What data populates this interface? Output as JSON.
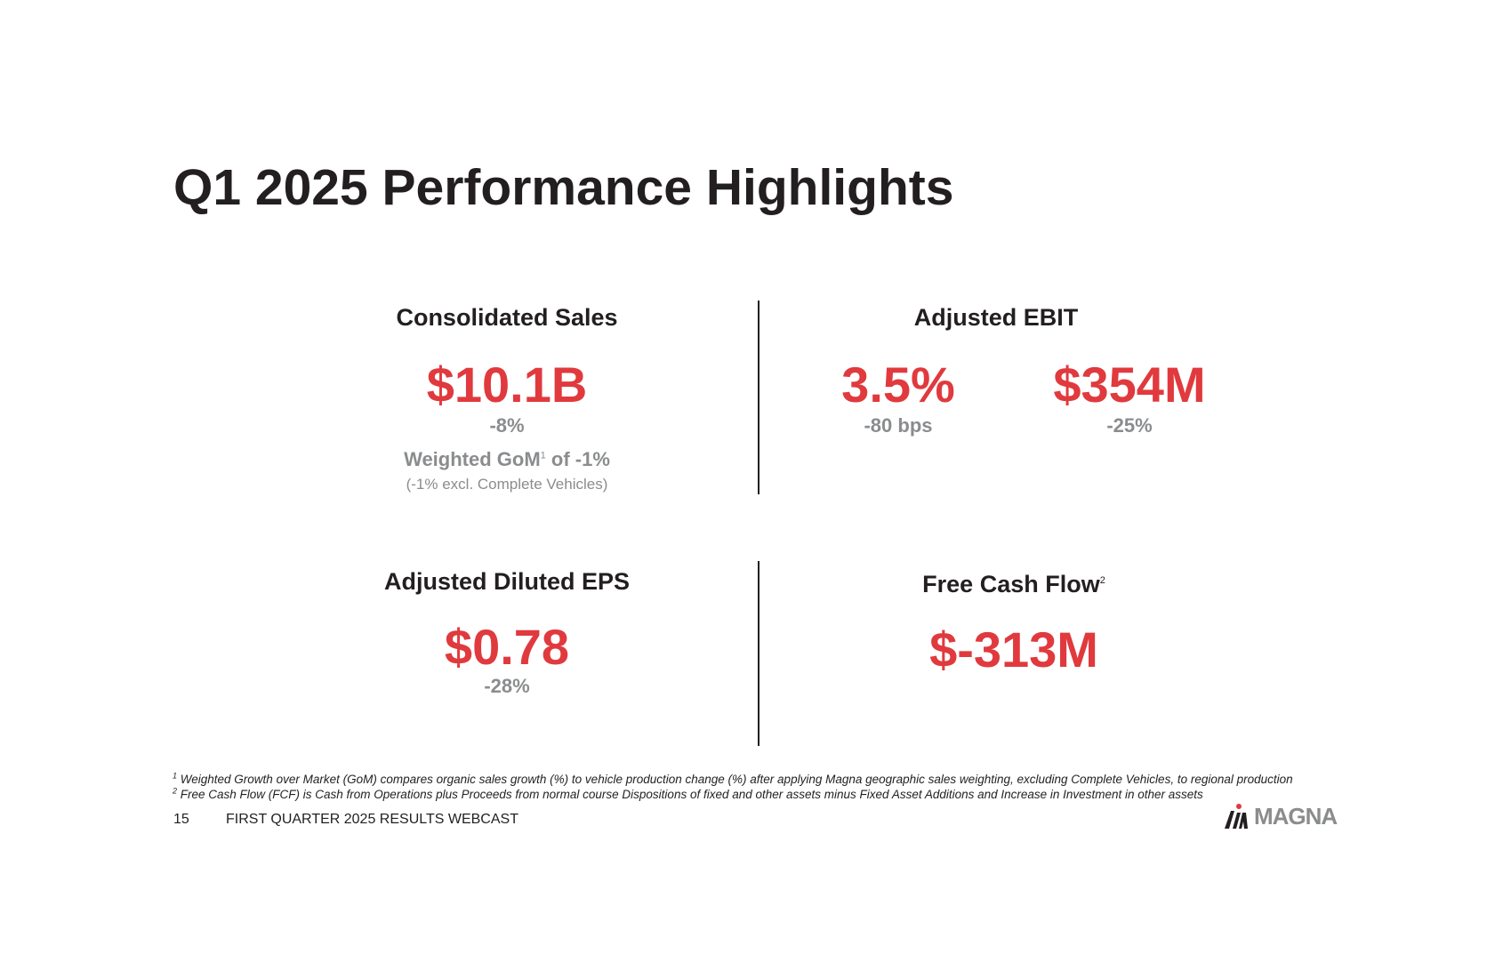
{
  "title": "Q1 2025 Performance Highlights",
  "consolidated_sales": {
    "heading": "Consolidated Sales",
    "value": "$10.1B",
    "change": "-8%",
    "gom_label": "Weighted GoM",
    "gom_sup": "1",
    "gom_value": " of -1%",
    "gom_note": "(-1% excl. Complete Vehicles)"
  },
  "adjusted_ebit": {
    "heading": "Adjusted EBIT",
    "margin_value": "3.5%",
    "margin_change": "-80 bps",
    "amount_value": "$354M",
    "amount_change": "-25%"
  },
  "adjusted_eps": {
    "heading": "Adjusted Diluted EPS",
    "value": "$0.78",
    "change": "-28%"
  },
  "free_cash_flow": {
    "heading": "Free Cash Flow",
    "heading_sup": "2",
    "value": "$-313M"
  },
  "footnotes": [
    {
      "marker": "1",
      "text": " Weighted Growth over Market (GoM) compares organic sales growth (%) to vehicle production change (%) after applying Magna geographic sales weighting, excluding Complete Vehicles, to regional production"
    },
    {
      "marker": "2",
      "text": " Free Cash Flow (FCF) is Cash from Operations plus Proceeds from normal course Dispositions of fixed and other assets minus Fixed Asset Additions and Increase in Investment in other assets"
    }
  ],
  "footer": {
    "page_number": "15",
    "caption": "FIRST QUARTER 2025 RESULTS WEBCAST"
  },
  "logo": {
    "wordmark": "MAGNA",
    "icon": "magna-logo-icon"
  },
  "colors": {
    "accent_red": "#e03a3e",
    "gray": "#8a8c8e",
    "text": "#231f20"
  }
}
